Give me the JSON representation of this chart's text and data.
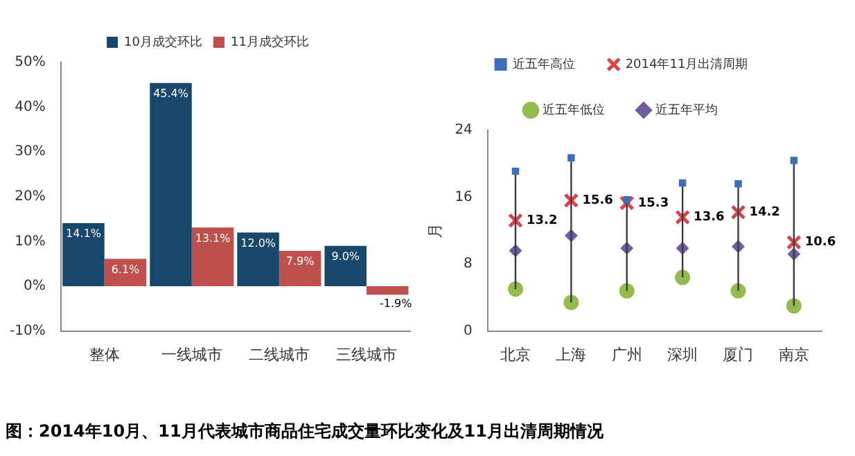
{
  "chart_data": [
    {
      "type": "bar",
      "categories": [
        "整体",
        "一线城市",
        "二线城市",
        "三线城市"
      ],
      "series": [
        {
          "name": "10月成交环比",
          "color": "#17476b",
          "values": [
            14.1,
            45.4,
            12.0,
            9.0
          ],
          "value_labels": [
            "14.1%",
            "45.4%",
            "12.0%",
            "9.0%"
          ]
        },
        {
          "name": "11月成交环比",
          "color": "#c0504d",
          "values": [
            6.1,
            13.1,
            7.9,
            -1.9
          ],
          "value_labels": [
            "6.1%",
            "13.1%",
            "7.9%",
            "-1.9%"
          ]
        }
      ],
      "ylim": [
        -10,
        50
      ],
      "yticks": [
        {
          "value": -10,
          "label": "-10%"
        },
        {
          "value": 0,
          "label": "0%"
        },
        {
          "value": 10,
          "label": "10%"
        },
        {
          "value": 20,
          "label": "20%"
        },
        {
          "value": 30,
          "label": "30%"
        },
        {
          "value": 40,
          "label": "40%"
        },
        {
          "value": 50,
          "label": "50%"
        }
      ],
      "legend": "top",
      "grid": false,
      "annotations": [
        "图：2014年10月、11月代表城市商品住宅成交量环比变化及11月出清周期情况"
      ]
    },
    {
      "type": "scatter",
      "categories": [
        "北京",
        "上海",
        "广州",
        "深圳",
        "厦门",
        "南京"
      ],
      "ylabel": "月",
      "series": [
        {
          "type": "bar",
          "color": "#3a3a48",
          "base": [
            5.0,
            3.4,
            4.8,
            6.4,
            4.8,
            3.0
          ],
          "values": [
            14.1,
            17.3,
            10.9,
            11.3,
            12.8,
            17.4
          ]
        },
        {
          "name": "2014年11月出清周期",
          "type": "scatter",
          "marker": "cross",
          "color": "#d9434a",
          "x": [
            "北京",
            "上海",
            "广州",
            "深圳",
            "厦门",
            "南京"
          ],
          "values": [
            13.2,
            15.6,
            15.3,
            13.6,
            14.2,
            10.6
          ],
          "value_labels": [
            "13.2",
            "15.6",
            "15.3",
            "13.6",
            "14.2",
            "10.6"
          ]
        },
        {
          "name": "近五年高位",
          "type": "scatter",
          "marker": "square",
          "color": "#3d6fb6",
          "x": [
            "北京",
            "上海",
            "广州",
            "深圳",
            "厦门",
            "南京"
          ],
          "values": [
            19.1,
            20.7,
            15.7,
            17.7,
            17.6,
            20.4
          ]
        },
        {
          "name": "近五年低位",
          "type": "scatter",
          "marker": "circle",
          "color": "#94bb4e",
          "x": [
            "北京",
            "上海",
            "广州",
            "深圳",
            "厦门",
            "南京"
          ],
          "values": [
            5.0,
            3.4,
            4.8,
            6.4,
            4.8,
            3.0
          ]
        },
        {
          "name": "近五年平均",
          "type": "scatter",
          "marker": "diamond",
          "color": "#6f5b9e",
          "x": [
            "北京",
            "上海",
            "广州",
            "深圳",
            "厦门",
            "南京"
          ],
          "values": [
            9.6,
            11.4,
            9.9,
            9.9,
            10.1,
            9.2
          ]
        }
      ],
      "ylim": [
        0,
        24
      ],
      "yticks": [
        0,
        8,
        16,
        24
      ],
      "legend": "top",
      "grid": false
    }
  ]
}
